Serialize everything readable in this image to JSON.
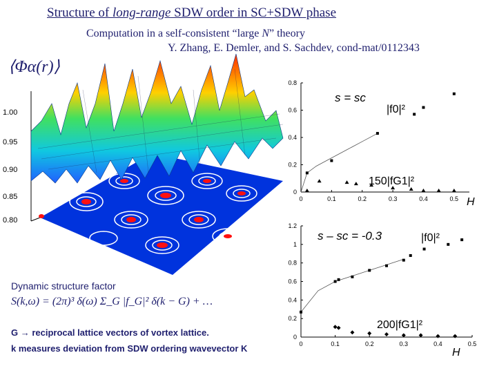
{
  "header": {
    "title_prefix": "Structure of ",
    "title_italic": "long-range",
    "title_suffix": " SDW order in SC+SDW phase",
    "computation_prefix": "Computation in a self-consistent “large ",
    "computation_italic": "N",
    "computation_suffix": "” theory",
    "citation": "Y. Zhang, E. Demler, and S. Sachdev, cond-mat/0112343"
  },
  "surface_plot": {
    "label": "⟨Φα(r)⟩",
    "z_ticks": [
      "1.00",
      "0.95",
      "0.90",
      "0.85",
      "0.80"
    ]
  },
  "formula": {
    "heading": "Dynamic structure factor",
    "equation": "S(k,ω) = (2π)³ δ(ω) Σ_G |f_G|² δ(k − G) + …",
    "g_definition": "G → reciprocal lattice vectors of vortex lattice.",
    "k_definition": "k measures deviation from SDW ordering wavevector K"
  },
  "chart_data": [
    {
      "type": "scatter",
      "title": "s = sc",
      "xlabel": "H",
      "ylabel": "",
      "xlim": [
        0,
        0.55
      ],
      "ylim": [
        0,
        0.8
      ],
      "x_ticks": [
        "0",
        "0.1",
        "0.2",
        "0.3",
        "0.4",
        "0.5"
      ],
      "y_ticks": [
        "0",
        "0.2",
        "0.4",
        "0.6",
        "0.8"
      ],
      "series": [
        {
          "name": "|f0|²",
          "marker": "square",
          "x": [
            0.02,
            0.1,
            0.25,
            0.37,
            0.4,
            0.5
          ],
          "y": [
            0.14,
            0.23,
            0.43,
            0.57,
            0.62,
            0.72
          ]
        },
        {
          "name": "150|fG1|²",
          "marker": "triangle",
          "x": [
            0.02,
            0.06,
            0.15,
            0.18,
            0.23,
            0.3,
            0.36,
            0.4,
            0.45,
            0.5
          ],
          "y": [
            0.01,
            0.08,
            0.07,
            0.06,
            0.05,
            0.03,
            0.02,
            0.01,
            0.01,
            0.01
          ]
        }
      ],
      "fit_line": {
        "x": [
          0.0,
          0.02,
          0.05,
          0.1,
          0.15,
          0.2,
          0.25
        ],
        "y": [
          0.0,
          0.14,
          0.19,
          0.25,
          0.31,
          0.37,
          0.43
        ]
      }
    },
    {
      "type": "scatter",
      "title": "s – sc = -0.3",
      "xlabel": "H",
      "ylabel": "",
      "xlim": [
        0,
        0.5
      ],
      "ylim": [
        0,
        1.2
      ],
      "x_ticks": [
        "0",
        "0.1",
        "0.2",
        "0.3",
        "0.4",
        "0.5"
      ],
      "y_ticks": [
        "0",
        "0.2",
        "0.4",
        "0.6",
        "0.8",
        "1",
        "1.2"
      ],
      "series": [
        {
          "name": "|f0|²",
          "marker": "square",
          "x": [
            0.0,
            0.1,
            0.11,
            0.15,
            0.2,
            0.25,
            0.3,
            0.32,
            0.36,
            0.43,
            0.47
          ],
          "y": [
            0.27,
            0.6,
            0.62,
            0.65,
            0.72,
            0.77,
            0.83,
            0.88,
            0.95,
            1.0,
            1.05
          ]
        },
        {
          "name": "200|fG1|²",
          "marker": "diamond",
          "x": [
            0.1,
            0.11,
            0.15,
            0.2,
            0.25,
            0.3,
            0.35,
            0.4,
            0.45
          ],
          "y": [
            0.11,
            0.1,
            0.05,
            0.04,
            0.03,
            0.02,
            0.02,
            0.01,
            0.01
          ]
        }
      ],
      "fit_line": {
        "x": [
          0.0,
          0.05,
          0.1,
          0.15,
          0.2,
          0.25,
          0.3
        ],
        "y": [
          0.27,
          0.5,
          0.6,
          0.66,
          0.72,
          0.78,
          0.84
        ]
      }
    }
  ]
}
